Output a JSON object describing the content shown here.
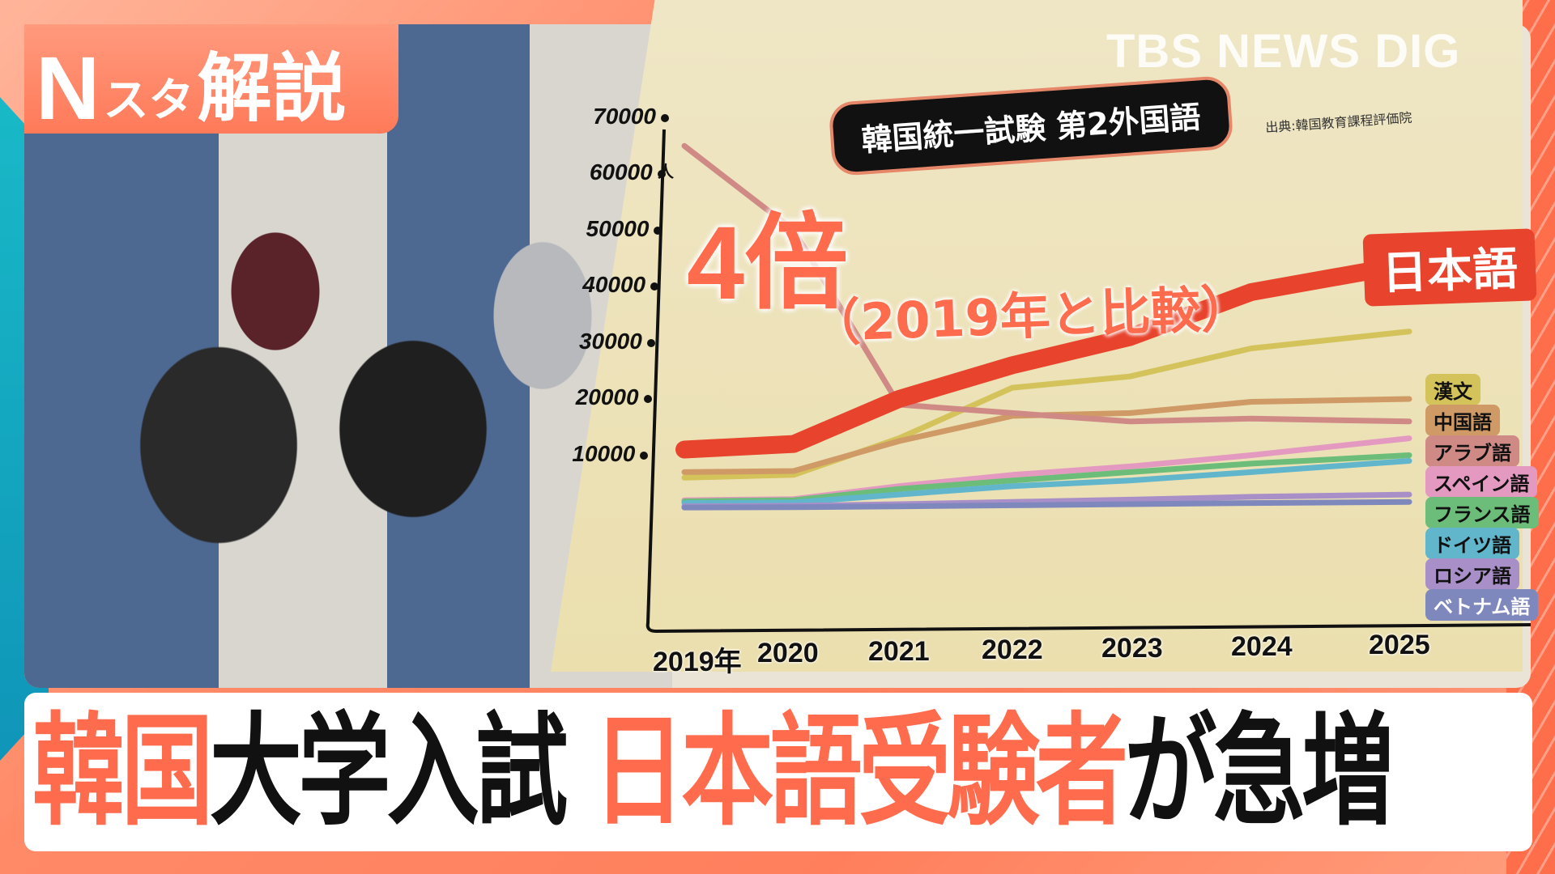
{
  "branding": {
    "program_n": "N",
    "program_sta": "スタ",
    "program_kaisetsu": "解説",
    "watermark": "TBS NEWS DIG"
  },
  "chart": {
    "title": "韓国統一試験 第2外国語",
    "source": "出典:韓国教育課程評価院",
    "callout_multiplier": "4倍",
    "callout_note": "（2019年と比較）",
    "highlight_label": "日本語",
    "y_unit": "人"
  },
  "caption": {
    "part1_red": "韓国",
    "part2_black": "大学入試",
    "part3_red": "日本語受験者",
    "part4_black": "が急増"
  },
  "colors": {
    "accent_orange": "#ff7a59",
    "japanese_red": "#e8432c",
    "teal": "#19b9c7"
  },
  "chart_data": {
    "type": "line",
    "title": "韓国統一試験 第2外国語",
    "subtitle": "出典:韓国教育課程評価院",
    "annotations": [
      "4倍（2019年と比較）",
      "日本語"
    ],
    "xlabel": "",
    "ylabel": "人",
    "x": [
      "2019年",
      "2020",
      "2021",
      "2022",
      "2023",
      "2024",
      "2025"
    ],
    "y_ticks": [
      10000,
      20000,
      30000,
      40000,
      50000,
      60000,
      70000
    ],
    "ylim": [
      0,
      70000
    ],
    "grid": false,
    "legend_position": "right",
    "series": [
      {
        "name": "日本語",
        "color": "#e8432c",
        "values": [
          11000,
          12000,
          20000,
          26000,
          31000,
          39000,
          44000
        ]
      },
      {
        "name": "漢文",
        "color": "#d4c25a",
        "values": [
          6000,
          6500,
          13000,
          22000,
          24000,
          29000,
          32000
        ]
      },
      {
        "name": "中国語",
        "color": "#cf9a66",
        "values": [
          7000,
          7200,
          12500,
          17000,
          17500,
          19500,
          20000
        ]
      },
      {
        "name": "アラブ語",
        "color": "#cf8a86",
        "values": [
          65000,
          50000,
          19000,
          17500,
          16000,
          16500,
          16000
        ]
      },
      {
        "name": "スペイン語",
        "color": "#e49ac0",
        "values": [
          2000,
          2200,
          4500,
          6500,
          8000,
          10000,
          13000
        ]
      },
      {
        "name": "フランス語",
        "color": "#6cbc7a",
        "values": [
          1800,
          2000,
          4000,
          5500,
          7000,
          8500,
          10000
        ]
      },
      {
        "name": "ドイツ語",
        "color": "#61b6cc",
        "values": [
          1500,
          1600,
          3000,
          4500,
          5500,
          7000,
          9000
        ]
      },
      {
        "name": "ロシア語",
        "color": "#a98fc8",
        "values": [
          900,
          1000,
          1300,
          1700,
          2100,
          2600,
          3000
        ]
      },
      {
        "name": "ベトナム語",
        "color": "#7f88bd",
        "values": [
          700,
          750,
          900,
          1100,
          1300,
          1500,
          1700
        ]
      }
    ]
  }
}
